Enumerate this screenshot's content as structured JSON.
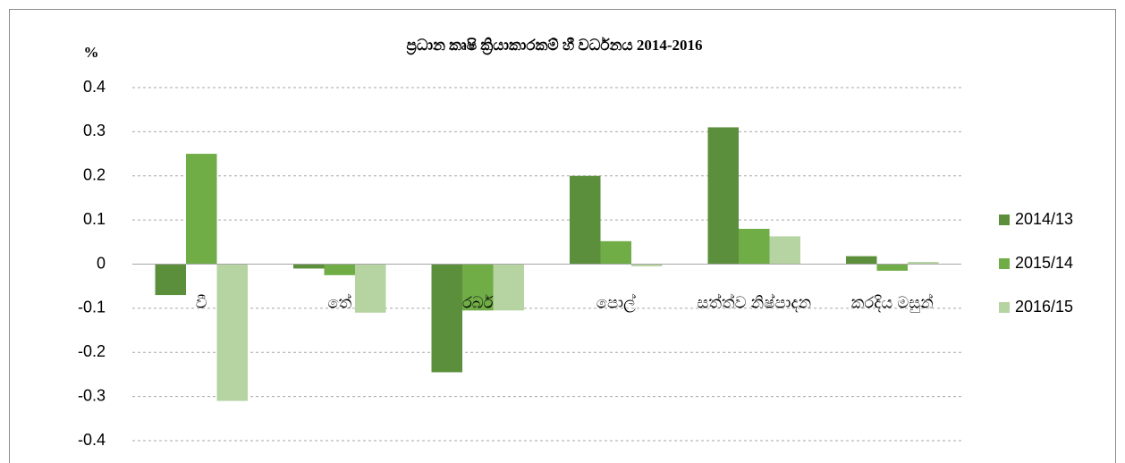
{
  "chart_data": {
    "type": "bar",
    "title": "ප්‍රධාන කෘෂි ක්‍රියාකාරකම් හී වර්ධනය 2014-2016",
    "y_label": "%",
    "categories": [
      "වී",
      "තේ",
      "රබර්",
      "පොල්",
      "සත්ත්ව නිෂ්පාදන",
      "කරදිය මසුන්"
    ],
    "series": [
      {
        "name": "2014/13",
        "color": "#5b8f3b",
        "values": [
          -0.07,
          -0.01,
          -0.245,
          0.2,
          0.31,
          0.018
        ]
      },
      {
        "name": "2015/14",
        "color": "#70ad47",
        "values": [
          0.25,
          -0.025,
          -0.105,
          0.052,
          0.08,
          -0.015
        ]
      },
      {
        "name": "2016/15",
        "color": "#b6d4a2",
        "values": [
          -0.31,
          -0.11,
          -0.105,
          -0.005,
          0.063,
          0.005
        ]
      }
    ],
    "ylim": [
      -0.4,
      0.4
    ],
    "yticks": [
      -0.4,
      -0.3,
      -0.2,
      -0.1,
      0,
      0.1,
      0.2,
      0.3,
      0.4
    ],
    "grid": true,
    "legend": "right"
  }
}
